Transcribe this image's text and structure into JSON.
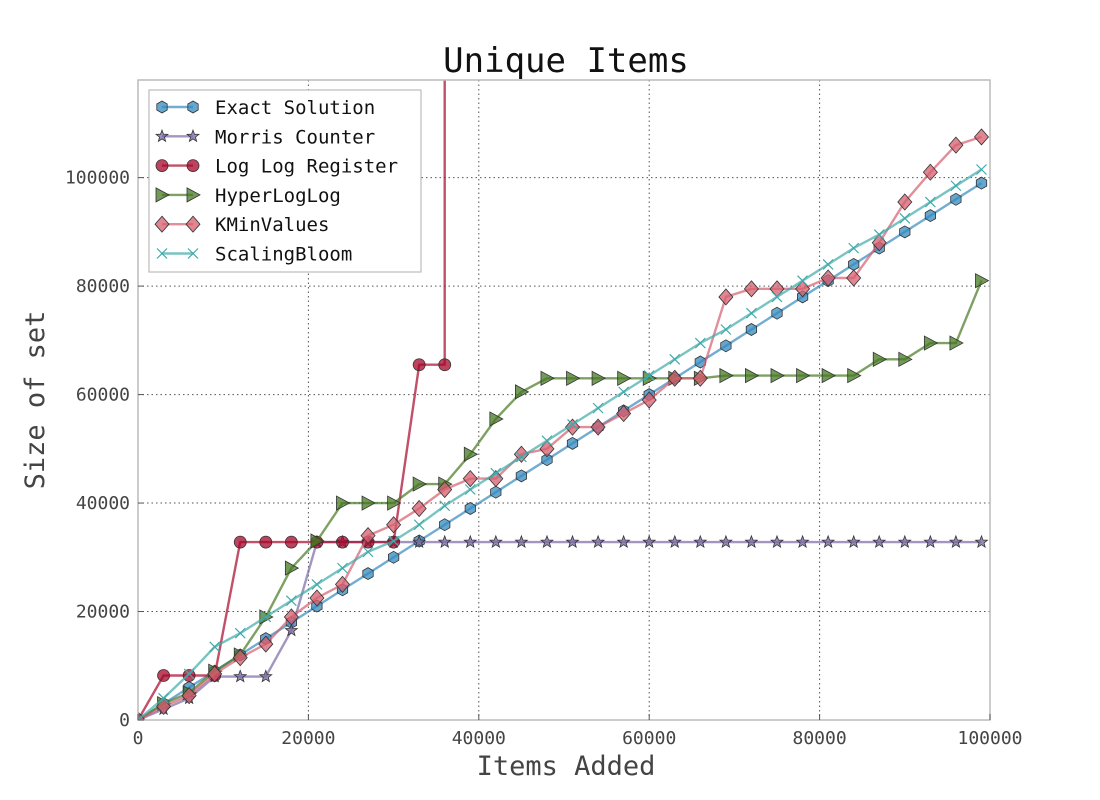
{
  "chart_data": {
    "type": "line",
    "title": "Unique Items",
    "xlabel": "Items Added",
    "ylabel": "Size of set",
    "xlim": [
      0,
      100000
    ],
    "ylim": [
      0,
      118000
    ],
    "xticks": [
      0,
      20000,
      40000,
      60000,
      80000,
      100000
    ],
    "yticks": [
      0,
      20000,
      40000,
      60000,
      80000,
      100000
    ],
    "xtick_labels": [
      "0",
      "20000",
      "40000",
      "60000",
      "80000",
      "100000"
    ],
    "ytick_labels": [
      "0",
      "20000",
      "40000",
      "60000",
      "80000",
      "100000"
    ],
    "grid": true,
    "legend_position": "top-left",
    "series": [
      {
        "name": "Exact Solution",
        "color": "#348abd",
        "marker": "hexagon",
        "x": [
          0,
          3000,
          6000,
          9000,
          12000,
          15000,
          18000,
          21000,
          24000,
          27000,
          30000,
          33000,
          36000,
          39000,
          42000,
          45000,
          48000,
          51000,
          54000,
          57000,
          60000,
          63000,
          66000,
          69000,
          72000,
          75000,
          78000,
          81000,
          84000,
          87000,
          90000,
          93000,
          96000,
          99000
        ],
        "values": [
          0,
          3000,
          6000,
          9000,
          12000,
          15000,
          18000,
          21000,
          24000,
          27000,
          30000,
          33000,
          36000,
          39000,
          42000,
          45000,
          48000,
          51000,
          54000,
          57000,
          60000,
          63000,
          66000,
          69000,
          72000,
          75000,
          78000,
          81000,
          84000,
          87000,
          90000,
          93000,
          96000,
          99000
        ]
      },
      {
        "name": "Morris Counter",
        "color": "#7a68a6",
        "marker": "star",
        "x": [
          0,
          3000,
          6000,
          9000,
          12000,
          15000,
          18000,
          21000,
          24000,
          27000,
          30000,
          33000,
          36000,
          39000,
          42000,
          45000,
          48000,
          51000,
          54000,
          57000,
          60000,
          63000,
          66000,
          69000,
          72000,
          75000,
          78000,
          81000,
          84000,
          87000,
          90000,
          93000,
          96000,
          99000
        ],
        "values": [
          0,
          2000,
          4000,
          8000,
          8000,
          8000,
          16500,
          32800,
          32800,
          32800,
          32800,
          32800,
          32800,
          32800,
          32800,
          32800,
          32800,
          32800,
          32800,
          32800,
          32800,
          32800,
          32800,
          32800,
          32800,
          32800,
          32800,
          32800,
          32800,
          32800,
          32800,
          32800,
          32800,
          32800
        ]
      },
      {
        "name": "Log Log Register",
        "color": "#a60628",
        "marker": "circle",
        "x": [
          0,
          3000,
          6000,
          9000,
          12000,
          15000,
          18000,
          21000,
          24000,
          27000,
          30000,
          33000,
          36000,
          36000
        ],
        "values": [
          0,
          8200,
          8200,
          8200,
          32800,
          32800,
          32800,
          32800,
          32800,
          32800,
          32800,
          65500,
          65500,
          130000
        ]
      },
      {
        "name": "HyperLogLog",
        "color": "#467821",
        "marker": "triangle-right",
        "x": [
          0,
          3000,
          6000,
          9000,
          12000,
          15000,
          18000,
          21000,
          24000,
          27000,
          30000,
          33000,
          36000,
          39000,
          42000,
          45000,
          48000,
          51000,
          54000,
          57000,
          60000,
          63000,
          66000,
          69000,
          72000,
          75000,
          78000,
          81000,
          84000,
          87000,
          90000,
          93000,
          96000,
          99000
        ],
        "values": [
          0,
          3000,
          5000,
          9000,
          12000,
          19000,
          28000,
          33000,
          40000,
          40000,
          40000,
          43500,
          43500,
          49000,
          55500,
          60500,
          63000,
          63000,
          63000,
          63000,
          63000,
          63000,
          63000,
          63500,
          63500,
          63500,
          63500,
          63500,
          63500,
          66500,
          66500,
          69500,
          69500,
          81000
        ]
      },
      {
        "name": "KMinValues",
        "color": "#d55e6e",
        "marker": "diamond",
        "x": [
          0,
          3000,
          6000,
          9000,
          12000,
          15000,
          18000,
          21000,
          24000,
          27000,
          30000,
          33000,
          36000,
          39000,
          42000,
          45000,
          48000,
          51000,
          54000,
          57000,
          60000,
          63000,
          66000,
          69000,
          72000,
          75000,
          78000,
          81000,
          84000,
          87000,
          90000,
          93000,
          96000,
          99000
        ],
        "values": [
          0,
          2500,
          4500,
          8500,
          11500,
          14000,
          19000,
          22500,
          25000,
          34000,
          36000,
          39000,
          42500,
          44500,
          44500,
          49000,
          50000,
          54000,
          54000,
          56500,
          59000,
          63000,
          63000,
          78000,
          79500,
          79500,
          79500,
          81500,
          81500,
          88000,
          95500,
          101000,
          106000,
          107500
        ]
      },
      {
        "name": "ScalingBloom",
        "color": "#40a9a9",
        "marker": "x",
        "x": [
          0,
          3000,
          6000,
          9000,
          12000,
          15000,
          18000,
          21000,
          24000,
          27000,
          30000,
          33000,
          36000,
          39000,
          42000,
          45000,
          48000,
          51000,
          54000,
          57000,
          60000,
          63000,
          66000,
          69000,
          72000,
          75000,
          78000,
          81000,
          84000,
          87000,
          90000,
          93000,
          96000,
          99000
        ],
        "values": [
          0,
          4000,
          8500,
          13500,
          16000,
          19000,
          22000,
          25000,
          28000,
          31000,
          33000,
          36000,
          39500,
          42500,
          45500,
          48500,
          51500,
          54500,
          57500,
          60500,
          63500,
          66500,
          69500,
          72000,
          75000,
          78000,
          81000,
          84000,
          87000,
          89500,
          92500,
          95500,
          98500,
          101500
        ]
      }
    ]
  }
}
